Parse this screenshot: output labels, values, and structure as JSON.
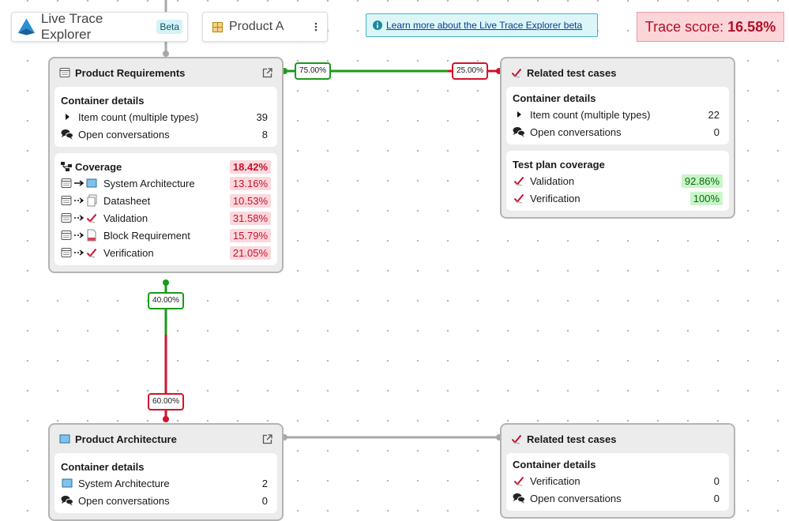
{
  "header": {
    "app_name": "Live Trace Explorer",
    "badge": "Beta",
    "product": "Product A",
    "learn_more": "Learn more about the Live Trace Explorer beta",
    "trace_score_label": "Trace score:",
    "trace_score": "16.58%"
  },
  "nodes": [
    {
      "title": "Product Requirements",
      "sections": [
        {
          "title": "Container details",
          "rows": [
            {
              "label": "Item count (multiple types)",
              "value": "39"
            },
            {
              "label": "Open conversations",
              "value": "8"
            }
          ]
        },
        {
          "title": "Coverage",
          "value": "18.42%",
          "rows": [
            {
              "label": "System Architecture",
              "value": "13.16%"
            },
            {
              "label": "Datasheet",
              "value": "10.53%"
            },
            {
              "label": "Validation",
              "value": "31.58%"
            },
            {
              "label": "Block Requirement",
              "value": "15.79%"
            },
            {
              "label": "Verification",
              "value": "21.05%"
            }
          ]
        }
      ]
    },
    {
      "title": "Related test cases",
      "sections": [
        {
          "title": "Container details",
          "rows": [
            {
              "label": "Item count (multiple types)",
              "value": "22"
            },
            {
              "label": "Open conversations",
              "value": "0"
            }
          ]
        },
        {
          "title": "Test plan coverage",
          "rows": [
            {
              "label": "Validation",
              "value": "92.86%"
            },
            {
              "label": "Verification",
              "value": "100%"
            }
          ]
        }
      ]
    },
    {
      "title": "Product Architecture",
      "sections": [
        {
          "title": "Container details",
          "rows": [
            {
              "label": "System Architecture",
              "value": "2"
            },
            {
              "label": "Open conversations",
              "value": "0"
            }
          ]
        }
      ]
    },
    {
      "title": "Related test cases",
      "sections": [
        {
          "title": "Container details",
          "rows": [
            {
              "label": "Verification",
              "value": "0"
            },
            {
              "label": "Open conversations",
              "value": "0"
            }
          ]
        }
      ]
    }
  ],
  "edges": {
    "requirements_to_tests": {
      "covered": "75.00%",
      "uncovered": "25.00%"
    },
    "requirements_to_architecture": {
      "covered": "40.00%",
      "uncovered": "60.00%"
    }
  }
}
